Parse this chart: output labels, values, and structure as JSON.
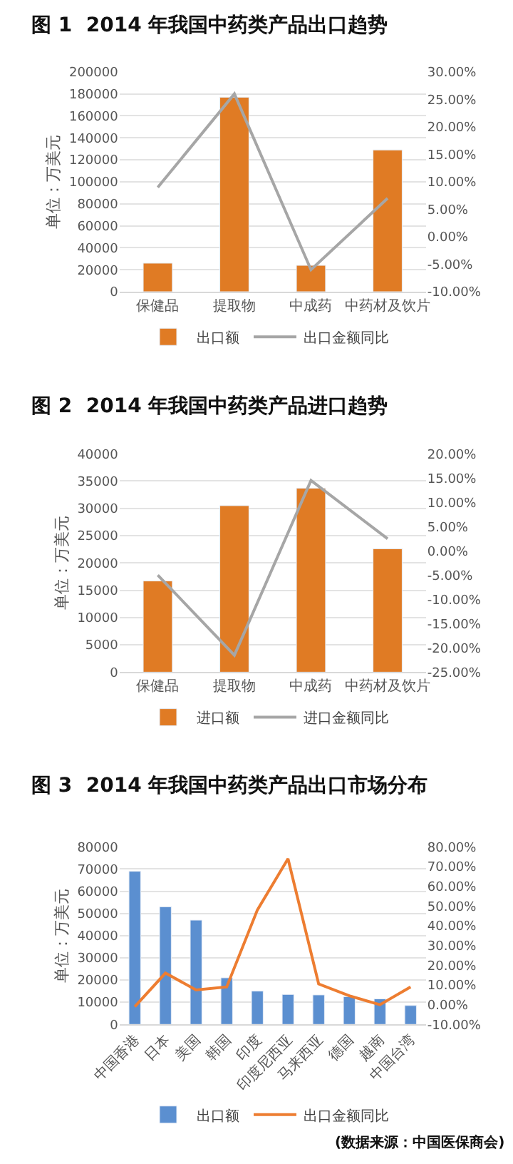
{
  "chart_data": [
    {
      "type": "bar",
      "title": "图 1  2014 年我国中药类产品出口趋势",
      "ylabel": "单位：万美元",
      "categories": [
        "保健品",
        "提取物",
        "中成药",
        "中药材及饮片"
      ],
      "series": [
        {
          "name": "出口额",
          "color": "#e07b24",
          "values": [
            26000,
            177000,
            24000,
            129000
          ]
        },
        {
          "name": "出口金额同比",
          "type": "line",
          "axis": "y2",
          "color": "#a6a6a6",
          "values": [
            9,
            26,
            -6,
            7
          ]
        }
      ],
      "ylim": [
        0,
        200000
      ],
      "yticks": [
        0,
        20000,
        40000,
        60000,
        80000,
        100000,
        120000,
        140000,
        160000,
        180000,
        200000
      ],
      "y2lim": [
        -10,
        30
      ],
      "y2ticks": [
        {
          "value": -10,
          "label": "-10.00%"
        },
        {
          "value": -5,
          "label": "-5.00%"
        },
        {
          "value": 0,
          "label": "0.00%"
        },
        {
          "value": 5,
          "label": "5.00%"
        },
        {
          "value": 10,
          "label": "10.00%"
        },
        {
          "value": 15,
          "label": "15.00%"
        },
        {
          "value": 20,
          "label": "20.00%"
        },
        {
          "value": 25,
          "label": "25.00%"
        },
        {
          "value": 30,
          "label": "30.00%"
        }
      ],
      "grid": "y",
      "legend": "bottom"
    },
    {
      "type": "bar",
      "title": "图 2  2014 年我国中药类产品进口趋势",
      "ylabel": "单位：万美元",
      "categories": [
        "保健品",
        "提取物",
        "中成药",
        "中药材及饮片"
      ],
      "series": [
        {
          "name": "进口额",
          "color": "#e07b24",
          "values": [
            16700,
            30500,
            33700,
            22600
          ]
        },
        {
          "name": "进口金额同比",
          "type": "line",
          "axis": "y2",
          "color": "#a6a6a6",
          "values": [
            -5,
            -21.5,
            14.5,
            2.5
          ]
        }
      ],
      "ylim": [
        0,
        40000
      ],
      "yticks": [
        0,
        5000,
        10000,
        15000,
        20000,
        25000,
        30000,
        35000,
        40000
      ],
      "y2lim": [
        -25,
        20
      ],
      "y2ticks": [
        {
          "value": -25,
          "label": "-25.00%"
        },
        {
          "value": -20,
          "label": "-20.00%"
        },
        {
          "value": -15,
          "label": "-15.00%"
        },
        {
          "value": -10,
          "label": "-10.00%"
        },
        {
          "value": -5,
          "label": "-5.00%"
        },
        {
          "value": 0,
          "label": "0.00%"
        },
        {
          "value": 5,
          "label": "5.00%"
        },
        {
          "value": 10,
          "label": "10.00%"
        },
        {
          "value": 15,
          "label": "15.00%"
        },
        {
          "value": 20,
          "label": "20.00%"
        }
      ],
      "grid": "y",
      "legend": "bottom"
    },
    {
      "type": "bar",
      "title": "图 3  2014 年我国中药类产品出口市场分布",
      "ylabel": "单位：万美元",
      "categories": [
        "中国香港",
        "日本",
        "美国",
        "韩国",
        "印度",
        "印度尼西亚",
        "马来西亚",
        "德国",
        "越南",
        "中国台湾"
      ],
      "series": [
        {
          "name": "出口额",
          "color": "#5b8fd0",
          "values": [
            69000,
            53000,
            47000,
            21000,
            15000,
            13500,
            13300,
            12500,
            11500,
            8500
          ]
        },
        {
          "name": "出口金额同比",
          "type": "line",
          "axis": "y2",
          "color": "#ed7d31",
          "values": [
            -1,
            16,
            7.5,
            9,
            48,
            74,
            10.5,
            4.5,
            0,
            9
          ]
        }
      ],
      "ylim": [
        0,
        80000
      ],
      "yticks": [
        0,
        10000,
        20000,
        30000,
        40000,
        50000,
        60000,
        70000,
        80000
      ],
      "y2lim": [
        -10,
        80
      ],
      "y2ticks": [
        {
          "value": -10,
          "label": "-10.00%"
        },
        {
          "value": 0,
          "label": "0.00%"
        },
        {
          "value": 10,
          "label": "10.00%"
        },
        {
          "value": 20,
          "label": "20.00%"
        },
        {
          "value": 30,
          "label": "30.00%"
        },
        {
          "value": 40,
          "label": "40.00%"
        },
        {
          "value": 50,
          "label": "50.00%"
        },
        {
          "value": 60,
          "label": "60.00%"
        },
        {
          "value": 70,
          "label": "70.00%"
        },
        {
          "value": 80,
          "label": "80.00%"
        }
      ],
      "grid": "y",
      "legend": "bottom",
      "annotations": [
        "(数据来源：中国医保商会)"
      ]
    }
  ]
}
